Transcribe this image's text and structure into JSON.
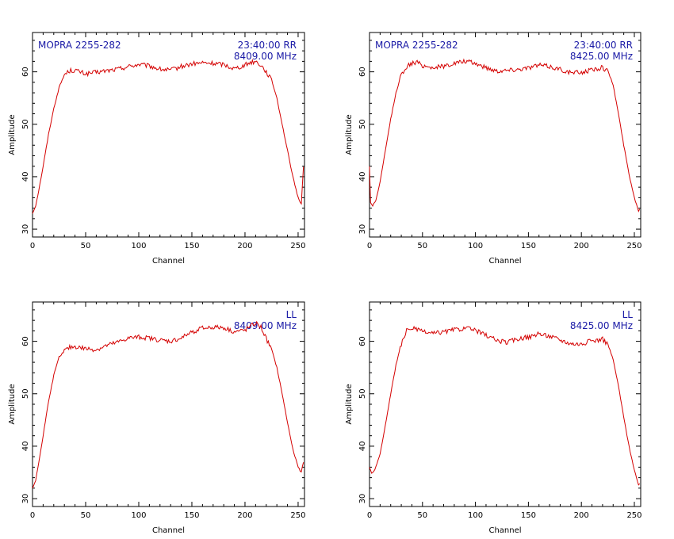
{
  "chart_data": [
    {
      "type": "line",
      "xlabel": "Channel",
      "ylabel": "Amplitude",
      "xlim": [
        0,
        256
      ],
      "ylim": [
        28.5,
        67.5
      ],
      "xticks": [
        0,
        50,
        100,
        150,
        200,
        250
      ],
      "yticks": [
        30,
        40,
        50,
        60
      ],
      "annotations": {
        "source": "MOPRA 2255-282",
        "time_pol": "23:40:00  RR",
        "freq": "8409.00 MHz"
      },
      "color": "#d40000",
      "series": [
        {
          "x": [
            0,
            3,
            6,
            10,
            15,
            20,
            25,
            30,
            35,
            40,
            50,
            60,
            70,
            80,
            90,
            100,
            110,
            120,
            130,
            140,
            150,
            160,
            170,
            180,
            190,
            200,
            205,
            210,
            215,
            220,
            225,
            230,
            235,
            240,
            245,
            250,
            253,
            255
          ],
          "values": [
            33,
            34.5,
            37.5,
            42,
            48,
            53,
            57,
            59.5,
            60.2,
            60.3,
            59.6,
            59.9,
            60.2,
            60.5,
            61,
            61.4,
            61.1,
            60.5,
            60.3,
            61,
            61.5,
            61.7,
            61.6,
            61.4,
            60.6,
            61.3,
            61.8,
            62,
            61.3,
            60,
            58.5,
            55,
            50,
            45,
            40,
            36,
            34.8,
            42
          ]
        }
      ]
    },
    {
      "type": "line",
      "xlabel": "Channel",
      "ylabel": "Amplitude",
      "xlim": [
        0,
        256
      ],
      "ylim": [
        28.5,
        67.5
      ],
      "xticks": [
        0,
        50,
        100,
        150,
        200,
        250
      ],
      "yticks": [
        30,
        40,
        50,
        60
      ],
      "annotations": {
        "source": "MOPRA 2255-282",
        "time_pol": "23:40:00  RR",
        "freq": "8425.00 MHz"
      },
      "color": "#d40000",
      "series": [
        {
          "x": [
            0,
            1,
            3,
            6,
            10,
            15,
            20,
            25,
            30,
            35,
            40,
            45,
            50,
            60,
            70,
            80,
            90,
            100,
            110,
            120,
            130,
            140,
            150,
            160,
            170,
            180,
            190,
            200,
            210,
            220,
            225,
            230,
            235,
            240,
            245,
            250,
            254,
            255
          ],
          "values": [
            42,
            35,
            34.5,
            35.5,
            39,
            45,
            51,
            56,
            59.5,
            61,
            61.6,
            61.8,
            61.2,
            60.8,
            61.1,
            61.6,
            62,
            61.6,
            60.8,
            60.2,
            60.3,
            60.5,
            60.8,
            61.3,
            61,
            60.5,
            59.8,
            59.9,
            60.4,
            60.8,
            60.2,
            57.5,
            52,
            46,
            40.5,
            36,
            33.5,
            33.8
          ]
        }
      ]
    },
    {
      "type": "line",
      "xlabel": "Channel",
      "ylabel": "Amplitude",
      "xlim": [
        0,
        256
      ],
      "ylim": [
        28.5,
        67.5
      ],
      "xticks": [
        0,
        50,
        100,
        150,
        200,
        250
      ],
      "yticks": [
        30,
        40,
        50,
        60
      ],
      "annotations": {
        "source": "",
        "time_pol": "LL",
        "freq": "8409.00 MHz"
      },
      "color": "#d40000",
      "series": [
        {
          "x": [
            0,
            3,
            6,
            10,
            15,
            20,
            25,
            30,
            35,
            40,
            50,
            60,
            70,
            80,
            90,
            100,
            110,
            120,
            130,
            140,
            150,
            160,
            170,
            180,
            190,
            200,
            205,
            210,
            215,
            220,
            225,
            230,
            235,
            240,
            245,
            250,
            253,
            255
          ],
          "values": [
            32,
            33.5,
            37,
            42,
            48.5,
            53.5,
            57,
            58.2,
            58.8,
            59,
            58.6,
            58.4,
            59.2,
            59.8,
            60.6,
            60.8,
            60.6,
            60.2,
            60,
            60.6,
            61.8,
            62.5,
            62.7,
            62.6,
            61.8,
            62.1,
            62.8,
            63.5,
            62.7,
            60.5,
            58.5,
            55,
            50,
            44.5,
            39.5,
            36,
            35,
            37
          ]
        }
      ]
    },
    {
      "type": "line",
      "xlabel": "Channel",
      "ylabel": "Amplitude",
      "xlim": [
        0,
        256
      ],
      "ylim": [
        28.5,
        67.5
      ],
      "xticks": [
        0,
        50,
        100,
        150,
        200,
        250
      ],
      "yticks": [
        30,
        40,
        50,
        60
      ],
      "annotations": {
        "source": "",
        "time_pol": "LL",
        "freq": "8425.00 MHz"
      },
      "color": "#d40000",
      "series": [
        {
          "x": [
            0,
            2,
            5,
            10,
            15,
            20,
            25,
            30,
            35,
            40,
            45,
            50,
            60,
            70,
            80,
            90,
            100,
            110,
            120,
            130,
            140,
            150,
            160,
            170,
            180,
            190,
            200,
            210,
            220,
            225,
            230,
            235,
            240,
            245,
            250,
            254,
            255
          ],
          "values": [
            36,
            34.8,
            35.5,
            38.5,
            44,
            50,
            55.5,
            59.5,
            62,
            62.6,
            62.2,
            61.8,
            61.5,
            61.8,
            62.2,
            62.5,
            62.1,
            61.2,
            60.2,
            59.8,
            60.5,
            60.8,
            61.4,
            61,
            60.3,
            59.6,
            59.5,
            60.1,
            60.4,
            59.5,
            56.5,
            51.5,
            45.5,
            40,
            35.5,
            32.5,
            32.8
          ]
        }
      ]
    }
  ]
}
